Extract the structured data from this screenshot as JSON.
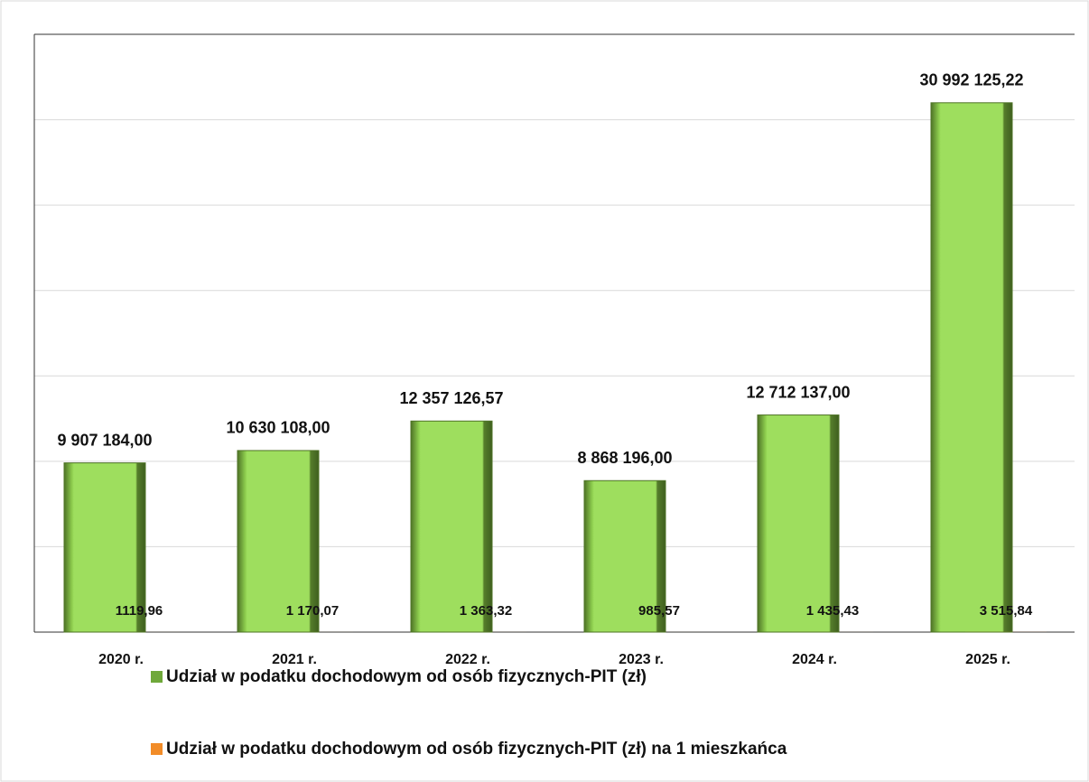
{
  "chart_data": {
    "type": "bar",
    "categories": [
      "2020 r.",
      "2021 r.",
      "2022 r.",
      "2023 r.",
      "2024 r.",
      "2025 r."
    ],
    "series": [
      {
        "name": "Udział w podatku dochodowym od osób fizycznych-PIT (zł)",
        "color": "#92d050",
        "values": [
          9907184.0,
          10630108.0,
          12357126.57,
          8868196.0,
          12712137.0,
          30992125.22
        ],
        "value_labels": [
          "9 907 184,00",
          "10 630 108,00",
          "12 357 126,57",
          "8 868 196,00",
          "12 712 137,00",
          "30 992 125,22"
        ]
      },
      {
        "name": "Udział w podatku dochodowym od osób fizycznych-PIT (zł) na 1 mieszkańca",
        "color": "#f28c28",
        "values": [
          1119.96,
          1170.07,
          1363.32,
          985.57,
          1435.43,
          3515.84
        ],
        "value_labels": [
          "1119,96",
          "1 170,07",
          "1 363,32",
          "985,57",
          "1 435,43",
          "3 515,84"
        ]
      }
    ],
    "ylim": [
      0,
      35000000
    ],
    "yticks": [
      0,
      5000000,
      10000000,
      15000000,
      20000000,
      25000000,
      30000000,
      35000000
    ],
    "grid": true
  }
}
